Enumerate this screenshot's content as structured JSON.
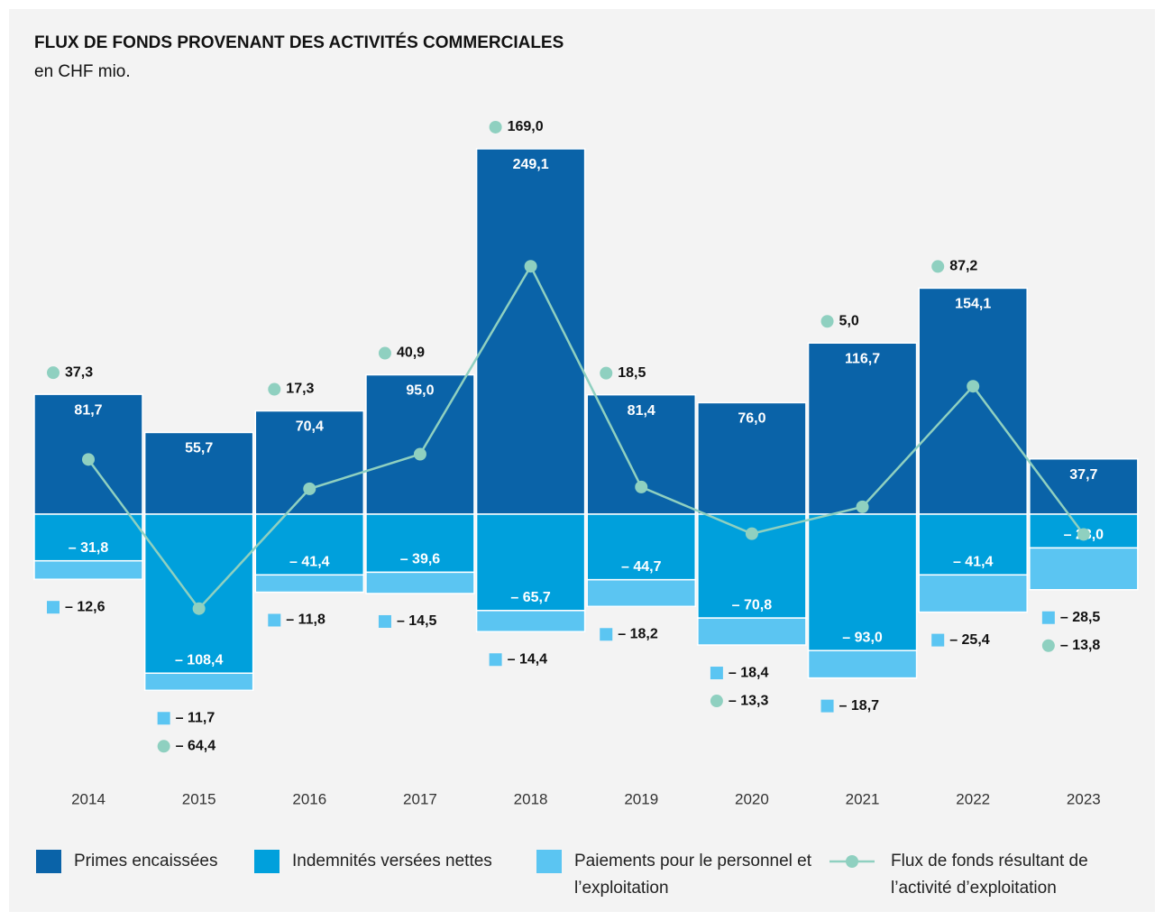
{
  "chart_data": {
    "type": "bar",
    "title": "FLUX DE FONDS PROVENANT DES ACTIVITÉS COMMERCIALES",
    "subtitle": "en CHF mio.",
    "stacked": true,
    "categories": [
      "2014",
      "2015",
      "2016",
      "2017",
      "2018",
      "2019",
      "2020",
      "2021",
      "2022",
      "2023"
    ],
    "series": [
      {
        "name": "Primes encaissées",
        "color": "#0a63a8",
        "values": [
          81.7,
          55.7,
          70.4,
          95.0,
          249.1,
          81.4,
          76.0,
          116.7,
          154.1,
          37.7
        ],
        "value_labels": [
          "81,7",
          "55,7",
          "70,4",
          "95,0",
          "249,1",
          "81,4",
          "76,0",
          "116,7",
          "154,1",
          "37,7"
        ]
      },
      {
        "name": "Indemnités versées nettes",
        "color": "#00a0dc",
        "values": [
          -31.8,
          -108.4,
          -41.4,
          -39.6,
          -65.7,
          -44.7,
          -70.8,
          -93.0,
          -41.4,
          -23.0
        ],
        "value_labels": [
          "– 31,8",
          "– 108,4",
          "– 41,4",
          "– 39,6",
          "– 65,7",
          "– 44,7",
          "– 70,8",
          "– 93,0",
          "– 41,4",
          "– 23,0"
        ]
      },
      {
        "name": "Paiements pour le personnel et l’exploitation",
        "color": "#5bc5f2",
        "values": [
          -12.6,
          -11.7,
          -11.8,
          -14.5,
          -14.4,
          -18.2,
          -18.4,
          -18.7,
          -25.4,
          -28.5
        ],
        "value_labels": [
          "– 12,6",
          "– 11,7",
          "– 11,8",
          "– 14,5",
          "– 14,4",
          "– 18,2",
          "– 18,4",
          "– 18,7",
          "– 25,4",
          "– 28,5"
        ]
      },
      {
        "name": "Flux de fonds résultant de l’activité d’exploitation",
        "color": "#8fd0c0",
        "type": "line",
        "values": [
          37.3,
          -64.4,
          17.3,
          40.9,
          169.0,
          18.5,
          -13.3,
          5.0,
          87.2,
          -13.8
        ],
        "value_labels": [
          "37,3",
          "– 64,4",
          "17,3",
          "40,9",
          "169,0",
          "18,5",
          "– 13,3",
          "5,0",
          "87,2",
          "– 13,8"
        ]
      }
    ]
  }
}
